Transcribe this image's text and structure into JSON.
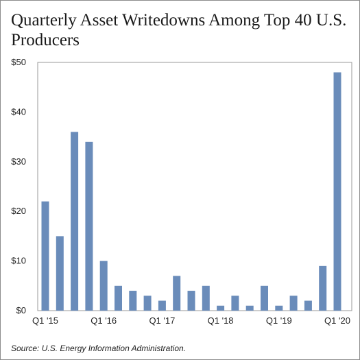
{
  "title": "Quarterly Asset Writedowns Among Top 40 U.S. Producers",
  "source": "Source: U.S. Energy Information Administration.",
  "colors": {
    "bar": "#6a8cba",
    "plot_background": "#ffffff",
    "border": "#8c8c8c"
  },
  "chart_data": {
    "type": "bar",
    "title": "Quarterly Asset Writedowns Among Top 40 U.S. Producers",
    "xlabel": "",
    "ylabel": "",
    "ylim": [
      0,
      50
    ],
    "yticks": [
      0,
      10,
      20,
      30,
      40,
      50
    ],
    "ytick_labels": [
      "$0",
      "$10",
      "$20",
      "$30",
      "$40",
      "$50"
    ],
    "grid": false,
    "legend": "none",
    "categories": [
      "Q1 2015",
      "Q2 2015",
      "Q3 2015",
      "Q4 2015",
      "Q1 2016",
      "Q2 2016",
      "Q3 2016",
      "Q4 2016",
      "Q1 2017",
      "Q2 2017",
      "Q3 2017",
      "Q4 2017",
      "Q1 2018",
      "Q2 2018",
      "Q3 2018",
      "Q4 2018",
      "Q1 2019",
      "Q2 2019",
      "Q3 2019",
      "Q4 2019",
      "Q1 2020"
    ],
    "values": [
      22,
      15,
      36,
      34,
      10,
      5,
      4,
      3,
      2,
      7,
      4,
      5,
      1,
      3,
      1,
      5,
      1,
      3,
      2,
      9,
      48
    ],
    "xtick_labels": [
      {
        "index": 0,
        "label": "Q1 '15"
      },
      {
        "index": 4,
        "label": "Q1 '16"
      },
      {
        "index": 8,
        "label": "Q1 '17"
      },
      {
        "index": 12,
        "label": "Q1 '18"
      },
      {
        "index": 16,
        "label": "Q1 '19"
      },
      {
        "index": 20,
        "label": "Q1 '20"
      }
    ]
  }
}
